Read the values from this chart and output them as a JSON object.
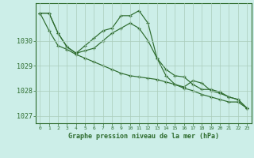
{
  "title": "Graphe pression niveau de la mer (hPa)",
  "background_color": "#cceee8",
  "grid_color": "#aaccbb",
  "line_color": "#2d6b2d",
  "xlim": [
    -0.5,
    23.5
  ],
  "ylim": [
    1026.7,
    1031.5
  ],
  "yticks": [
    1027,
    1028,
    1029,
    1030
  ],
  "xtick_labels": [
    "0",
    "1",
    "2",
    "3",
    "4",
    "5",
    "6",
    "7",
    "8",
    "9",
    "10",
    "11",
    "12",
    "13",
    "14",
    "15",
    "16",
    "17",
    "18",
    "19",
    "20",
    "21",
    "22",
    "23"
  ],
  "series1": [
    1031.1,
    1031.1,
    1030.3,
    1029.75,
    1029.5,
    1029.8,
    1030.1,
    1030.4,
    1030.5,
    1031.0,
    1031.0,
    1031.2,
    1030.7,
    1029.3,
    1028.85,
    1028.6,
    1028.55,
    1028.25,
    1028.05,
    1028.05,
    1027.95,
    1027.75,
    1027.65,
    1027.3
  ],
  "series2": [
    1031.1,
    1031.1,
    1030.3,
    1029.75,
    1029.5,
    1029.6,
    1029.7,
    1030.0,
    1030.3,
    1030.5,
    1030.7,
    1030.5,
    1030.0,
    1029.3,
    1028.6,
    1028.25,
    1028.15,
    1028.4,
    1028.3,
    1028.0,
    1027.9,
    1027.75,
    1027.65,
    1027.3
  ],
  "series3": [
    1031.1,
    1030.4,
    1029.8,
    1029.65,
    1029.45,
    1029.3,
    1029.15,
    1029.0,
    1028.85,
    1028.7,
    1028.6,
    1028.55,
    1028.5,
    1028.45,
    1028.35,
    1028.25,
    1028.1,
    1028.0,
    1027.85,
    1027.75,
    1027.65,
    1027.55,
    1027.55,
    1027.3
  ]
}
